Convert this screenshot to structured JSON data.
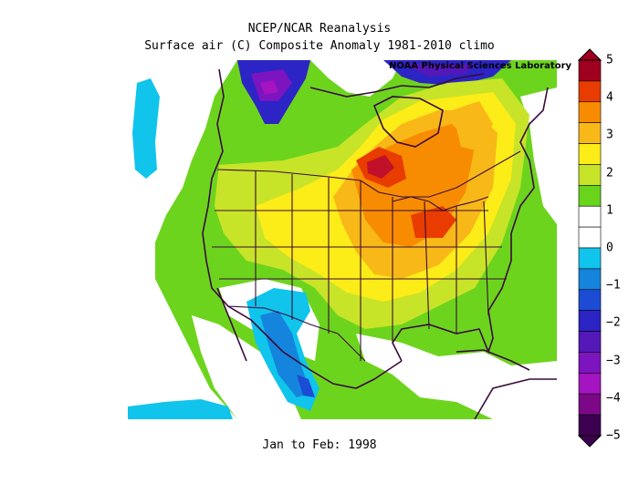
{
  "header": {
    "title": "NCEP/NCAR Reanalysis",
    "subtitle": "Surface air (C) Composite Anomaly 1981-2010 climo"
  },
  "map": {
    "credit": "NOAA Physical Sciences Laboratory",
    "period": "Jan to Feb: 1998",
    "region": "North America"
  },
  "colorbar": {
    "labels": [
      "5",
      "4",
      "3",
      "2",
      "1",
      "0",
      "-1",
      "-2",
      "-3",
      "-4",
      "-5"
    ],
    "colors": [
      "#a00020",
      "#e83c00",
      "#f88c00",
      "#f8b818",
      "#fcec18",
      "#c8e428",
      "#68d41c",
      "#ffffff",
      "#ffffff",
      "#10c4ec",
      "#1484dc",
      "#1c4cd4",
      "#2c24c4",
      "#5418b8",
      "#7c14c0",
      "#a414c0",
      "#7c0888",
      "#3c0050"
    ]
  }
}
